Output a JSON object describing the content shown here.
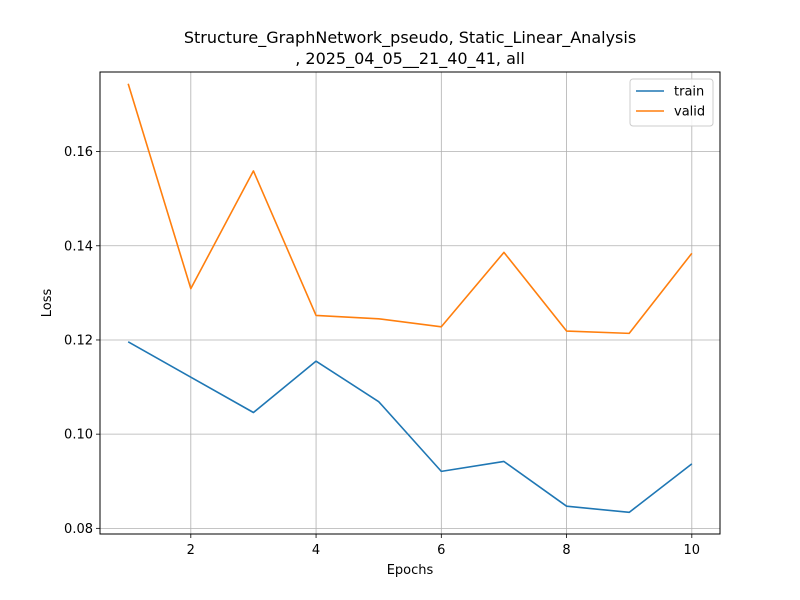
{
  "chart_data": {
    "type": "line",
    "title": [
      "Structure_GraphNetwork_pseudo, Static_Linear_Analysis",
      ", 2025_04_05__21_40_41, all"
    ],
    "xlabel": "Epochs",
    "ylabel": "Loss",
    "x": [
      1,
      2,
      3,
      4,
      5,
      6,
      7,
      8,
      9,
      10
    ],
    "xlim": [
      0.55,
      10.45
    ],
    "ylim": [
      0.0788,
      0.1769
    ],
    "xticks": [
      2,
      4,
      6,
      8,
      10
    ],
    "yticks": [
      0.08,
      0.1,
      0.12,
      0.14,
      0.16
    ],
    "ytick_labels": [
      "0.08",
      "0.10",
      "0.12",
      "0.14",
      "0.16"
    ],
    "grid": true,
    "legend_position": "top-right",
    "series": [
      {
        "name": "train",
        "color": "#1f77b4",
        "values": [
          0.1196,
          0.1121,
          0.1046,
          0.1155,
          0.1069,
          0.0921,
          0.0942,
          0.0847,
          0.0834,
          0.0937
        ]
      },
      {
        "name": "valid",
        "color": "#ff7f0e",
        "values": [
          0.1744,
          0.1309,
          0.1559,
          0.1252,
          0.1245,
          0.1228,
          0.1386,
          0.1219,
          0.1214,
          0.1384
        ]
      }
    ]
  }
}
